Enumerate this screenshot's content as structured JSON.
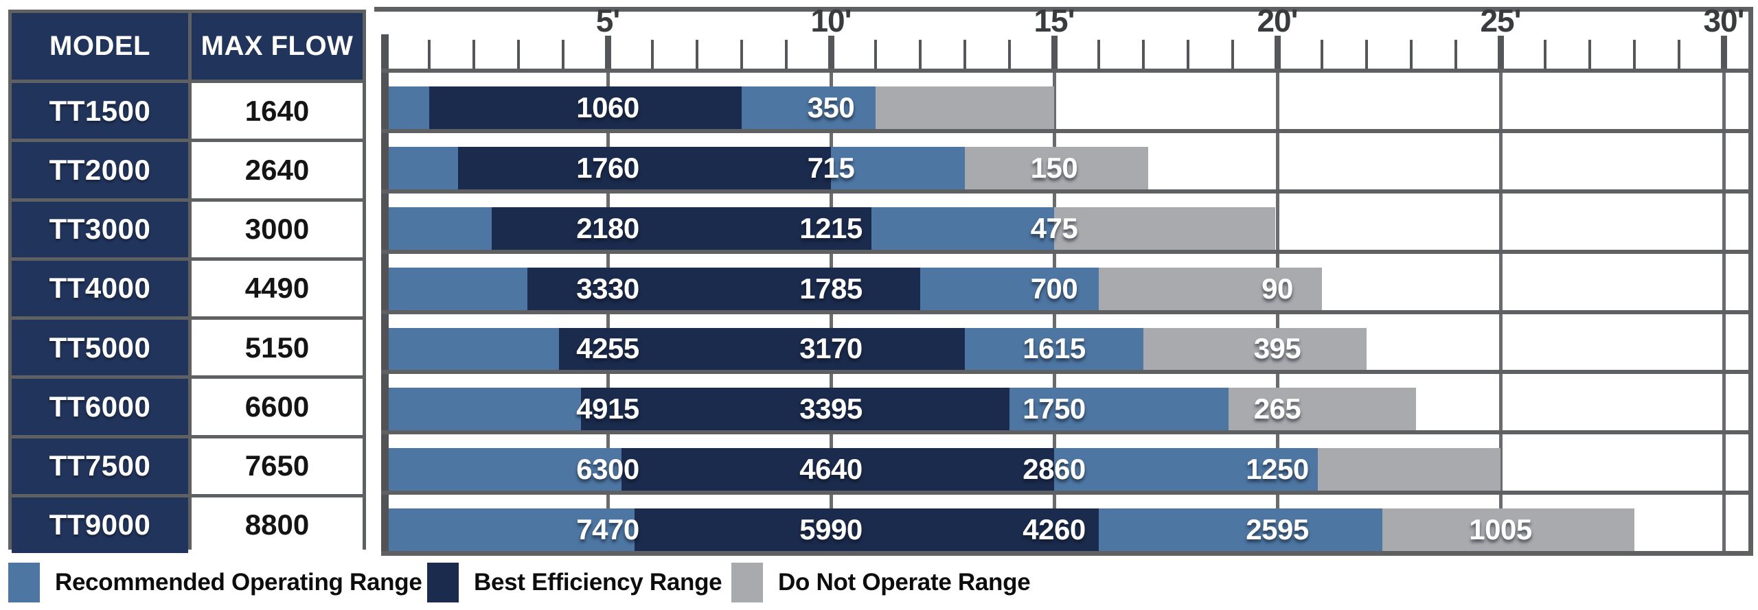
{
  "table": {
    "headers": {
      "model": "MODEL",
      "max_flow": "MAX FLOW"
    },
    "rows": [
      {
        "model": "TT1500",
        "max_flow": "1640"
      },
      {
        "model": "TT2000",
        "max_flow": "2640"
      },
      {
        "model": "TT3000",
        "max_flow": "3000"
      },
      {
        "model": "TT4000",
        "max_flow": "4490"
      },
      {
        "model": "TT5000",
        "max_flow": "5150"
      },
      {
        "model": "TT6000",
        "max_flow": "6600"
      },
      {
        "model": "TT7500",
        "max_flow": "7650"
      },
      {
        "model": "TT9000",
        "max_flow": "8800"
      }
    ]
  },
  "axis": {
    "labels": [
      "5'",
      "10'",
      "15'",
      "20'",
      "25'",
      "30'"
    ],
    "min_ft": 0,
    "max_ft": 30,
    "minor_tick_step_ft": 1,
    "major_tick_step_ft": 5
  },
  "chart_data": {
    "type": "bar",
    "orientation": "horizontal",
    "x_range": [
      0,
      30
    ],
    "x_unit": "feet of head",
    "x_major_ticks": [
      5,
      10,
      15,
      20,
      25,
      30
    ],
    "grid": true,
    "legend_position": "bottom",
    "models": [
      {
        "model": "TT1500",
        "max_flow": 1640,
        "ranges_ft": {
          "recommended_start": 0,
          "best_start": 1.0,
          "best_end": 8.0,
          "recommended_end": 11.0,
          "do_not_operate_end": 15.0
        },
        "flow_labels": [
          {
            "ft": 5,
            "value": "1060"
          },
          {
            "ft": 10,
            "value": "350"
          }
        ]
      },
      {
        "model": "TT2000",
        "max_flow": 2640,
        "ranges_ft": {
          "recommended_start": 0,
          "best_start": 1.65,
          "best_end": 10.0,
          "recommended_end": 13.0,
          "do_not_operate_end": 17.1
        },
        "flow_labels": [
          {
            "ft": 5,
            "value": "1760"
          },
          {
            "ft": 10,
            "value": "715"
          },
          {
            "ft": 15,
            "value": "150"
          }
        ]
      },
      {
        "model": "TT3000",
        "max_flow": 3000,
        "ranges_ft": {
          "recommended_start": 0,
          "best_start": 2.4,
          "best_end": 10.9,
          "recommended_end": 15.0,
          "do_not_operate_end": 19.95
        },
        "flow_labels": [
          {
            "ft": 5,
            "value": "2180"
          },
          {
            "ft": 10,
            "value": "1215"
          },
          {
            "ft": 15,
            "value": "475"
          }
        ]
      },
      {
        "model": "TT4000",
        "max_flow": 4490,
        "ranges_ft": {
          "recommended_start": 0,
          "best_start": 3.2,
          "best_end": 12.0,
          "recommended_end": 16.0,
          "do_not_operate_end": 21.0
        },
        "flow_labels": [
          {
            "ft": 5,
            "value": "3330"
          },
          {
            "ft": 10,
            "value": "1785"
          },
          {
            "ft": 15,
            "value": "700"
          },
          {
            "ft": 20,
            "value": "90"
          }
        ]
      },
      {
        "model": "TT5000",
        "max_flow": 5150,
        "ranges_ft": {
          "recommended_start": 0,
          "best_start": 3.9,
          "best_end": 13.0,
          "recommended_end": 17.0,
          "do_not_operate_end": 22.0
        },
        "flow_labels": [
          {
            "ft": 5,
            "value": "4255"
          },
          {
            "ft": 10,
            "value": "3170"
          },
          {
            "ft": 15,
            "value": "1615"
          },
          {
            "ft": 20,
            "value": "395"
          }
        ]
      },
      {
        "model": "TT6000",
        "max_flow": 6600,
        "ranges_ft": {
          "recommended_start": 0,
          "best_start": 4.4,
          "best_end": 14.0,
          "recommended_end": 18.9,
          "do_not_operate_end": 23.1
        },
        "flow_labels": [
          {
            "ft": 5,
            "value": "4915"
          },
          {
            "ft": 10,
            "value": "3395"
          },
          {
            "ft": 15,
            "value": "1750"
          },
          {
            "ft": 20,
            "value": "265"
          }
        ]
      },
      {
        "model": "TT7500",
        "max_flow": 7650,
        "ranges_ft": {
          "recommended_start": 0,
          "best_start": 5.3,
          "best_end": 15.0,
          "recommended_end": 20.9,
          "do_not_operate_end": 25.0
        },
        "flow_labels": [
          {
            "ft": 5,
            "value": "6300"
          },
          {
            "ft": 10,
            "value": "4640"
          },
          {
            "ft": 15,
            "value": "2860"
          },
          {
            "ft": 20,
            "value": "1250"
          }
        ]
      },
      {
        "model": "TT9000",
        "max_flow": 8800,
        "ranges_ft": {
          "recommended_start": 0,
          "best_start": 5.6,
          "best_end": 16.0,
          "recommended_end": 22.35,
          "do_not_operate_end": 28.0
        },
        "flow_labels": [
          {
            "ft": 5,
            "value": "7470"
          },
          {
            "ft": 10,
            "value": "5990"
          },
          {
            "ft": 15,
            "value": "4260"
          },
          {
            "ft": 20,
            "value": "2595"
          },
          {
            "ft": 25,
            "value": "1005"
          }
        ]
      }
    ]
  },
  "legend": {
    "items": [
      {
        "key": "recommended",
        "label": "Recommended Operating Range",
        "color": "#4d76a2"
      },
      {
        "key": "best-efficiency",
        "label": "Best Efficiency Range",
        "color": "#1b2b4d"
      },
      {
        "key": "do-not-operate",
        "label": "Do Not Operate Range",
        "color": "#a8aaad"
      }
    ]
  },
  "colors": {
    "recommended_blue": "#4d76a2",
    "best_efficiency_navy": "#1b2b4d",
    "do_not_operate_gray": "#a8aaad",
    "table_navy": "#21345b",
    "grid_gray": "#5f6062",
    "axis_text": "#3a3b3d"
  }
}
